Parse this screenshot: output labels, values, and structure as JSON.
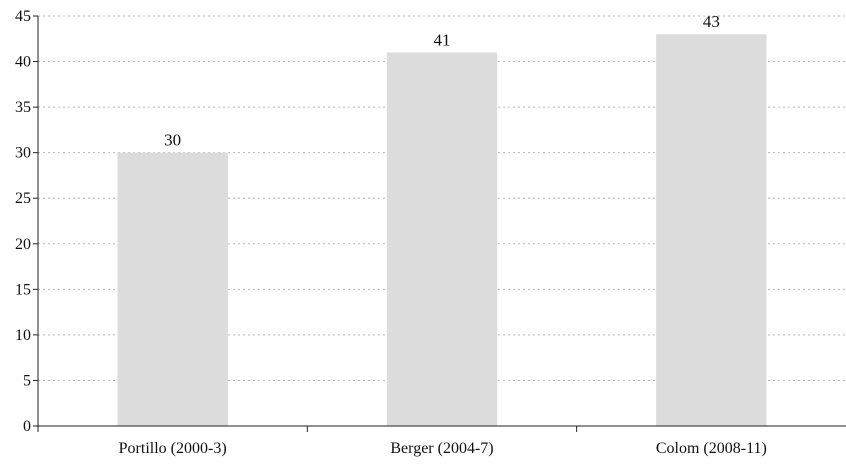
{
  "chart_data": {
    "type": "bar",
    "title": "",
    "xlabel": "",
    "ylabel": "",
    "categories": [
      "Portillo (2000-3)",
      "Berger (2004-7)",
      "Colom (2008-11)"
    ],
    "values": [
      30,
      41,
      43
    ],
    "data_labels": [
      "30",
      "41",
      "43"
    ],
    "ylim": [
      0,
      45
    ],
    "yticks": [
      0,
      5,
      10,
      15,
      20,
      25,
      30,
      35,
      40,
      45
    ],
    "ytick_labels": [
      "0",
      "5",
      "10",
      "15",
      "20",
      "25",
      "30",
      "35",
      "40",
      "45"
    ],
    "grid": true,
    "grid_style": "dotted",
    "legend": "none",
    "colors": {
      "bar": "#dcdcdc",
      "axis": "#222222",
      "grid": "#b8b8b8",
      "text": "#111111"
    }
  }
}
